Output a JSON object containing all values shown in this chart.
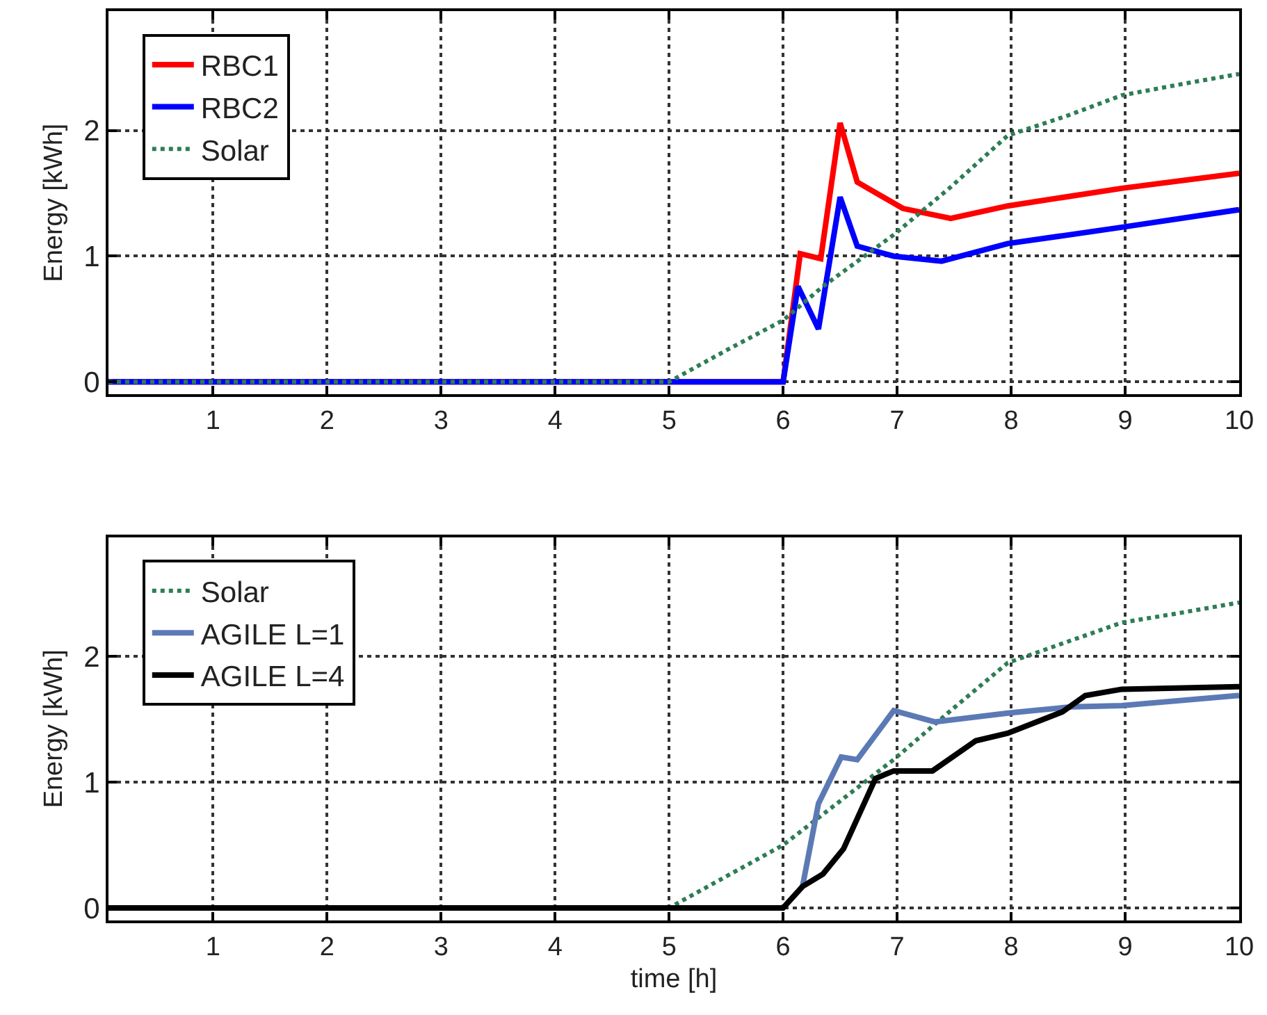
{
  "chart_data": [
    {
      "type": "line",
      "ylabel": "Energy [kWh]",
      "xlim": [
        0.083,
        10
      ],
      "xticks": [
        1,
        2,
        3,
        4,
        5,
        6,
        7,
        8,
        9,
        10
      ],
      "ylim": [
        -0.1,
        2.95
      ],
      "yticks": [
        0,
        1,
        2
      ],
      "grid": true,
      "legend": "top left",
      "series": [
        {
          "name": "RBC1",
          "color": "#ff0000",
          "x": [
            0.083,
            6.0,
            6.15,
            6.33,
            6.5,
            6.65,
            7.05,
            7.47,
            7.97,
            8.97,
            10
          ],
          "values": [
            0,
            0,
            1.02,
            0.98,
            2.06,
            1.59,
            1.38,
            1.3,
            1.4,
            1.54,
            1.66
          ]
        },
        {
          "name": "RBC2",
          "color": "#0000ff",
          "x": [
            0.083,
            6.0,
            6.13,
            6.31,
            6.5,
            6.65,
            6.97,
            7.39,
            7.97,
            8.97,
            10
          ],
          "values": [
            0,
            0,
            0.76,
            0.42,
            1.47,
            1.08,
            1.0,
            0.96,
            1.1,
            1.23,
            1.37
          ]
        },
        {
          "name": "Solar",
          "color": "#2e7d55",
          "line_style": "dotted",
          "x": [
            0.083,
            5.0,
            5.5,
            6.0,
            6.35,
            6.97,
            7.47,
            7.97,
            8.5,
            8.97,
            9.5,
            10
          ],
          "values": [
            0,
            0,
            0.25,
            0.49,
            0.76,
            1.17,
            1.55,
            1.96,
            2.12,
            2.28,
            2.37,
            2.45
          ]
        }
      ]
    },
    {
      "type": "line",
      "xlabel": "time [h]",
      "ylabel": "Energy [kWh]",
      "xlim": [
        0.083,
        10
      ],
      "xticks": [
        1,
        2,
        3,
        4,
        5,
        6,
        7,
        8,
        9,
        10
      ],
      "ylim": [
        -0.1,
        2.95
      ],
      "yticks": [
        0,
        1,
        2
      ],
      "grid": true,
      "legend": "top left",
      "series": [
        {
          "name": "Solar",
          "color": "#2e7d55",
          "line_style": "dotted",
          "x": [
            0.083,
            5.0,
            5.5,
            6.0,
            6.5,
            6.97,
            7.47,
            7.97,
            8.5,
            8.97,
            9.5,
            10
          ],
          "values": [
            0,
            0,
            0.25,
            0.5,
            0.85,
            1.18,
            1.57,
            1.95,
            2.12,
            2.27,
            2.35,
            2.43
          ]
        },
        {
          "name": "AGILE L=1",
          "color": "#5b7ab5",
          "x": [
            6.17,
            6.31,
            6.51,
            6.65,
            6.97,
            7.33,
            7.97,
            8.53,
            8.97,
            10
          ],
          "values": [
            0.17,
            0.83,
            1.2,
            1.18,
            1.57,
            1.48,
            1.55,
            1.6,
            1.61,
            1.69
          ]
        },
        {
          "name": "AGILE L=4",
          "color": "#000000",
          "x": [
            0.083,
            6.0,
            6.17,
            6.35,
            6.53,
            6.81,
            6.97,
            7.31,
            7.69,
            7.97,
            8.45,
            8.65,
            8.97,
            10
          ],
          "values": [
            0,
            0,
            0.17,
            0.27,
            0.47,
            1.03,
            1.09,
            1.09,
            1.33,
            1.39,
            1.56,
            1.69,
            1.74,
            1.76
          ]
        }
      ]
    }
  ]
}
